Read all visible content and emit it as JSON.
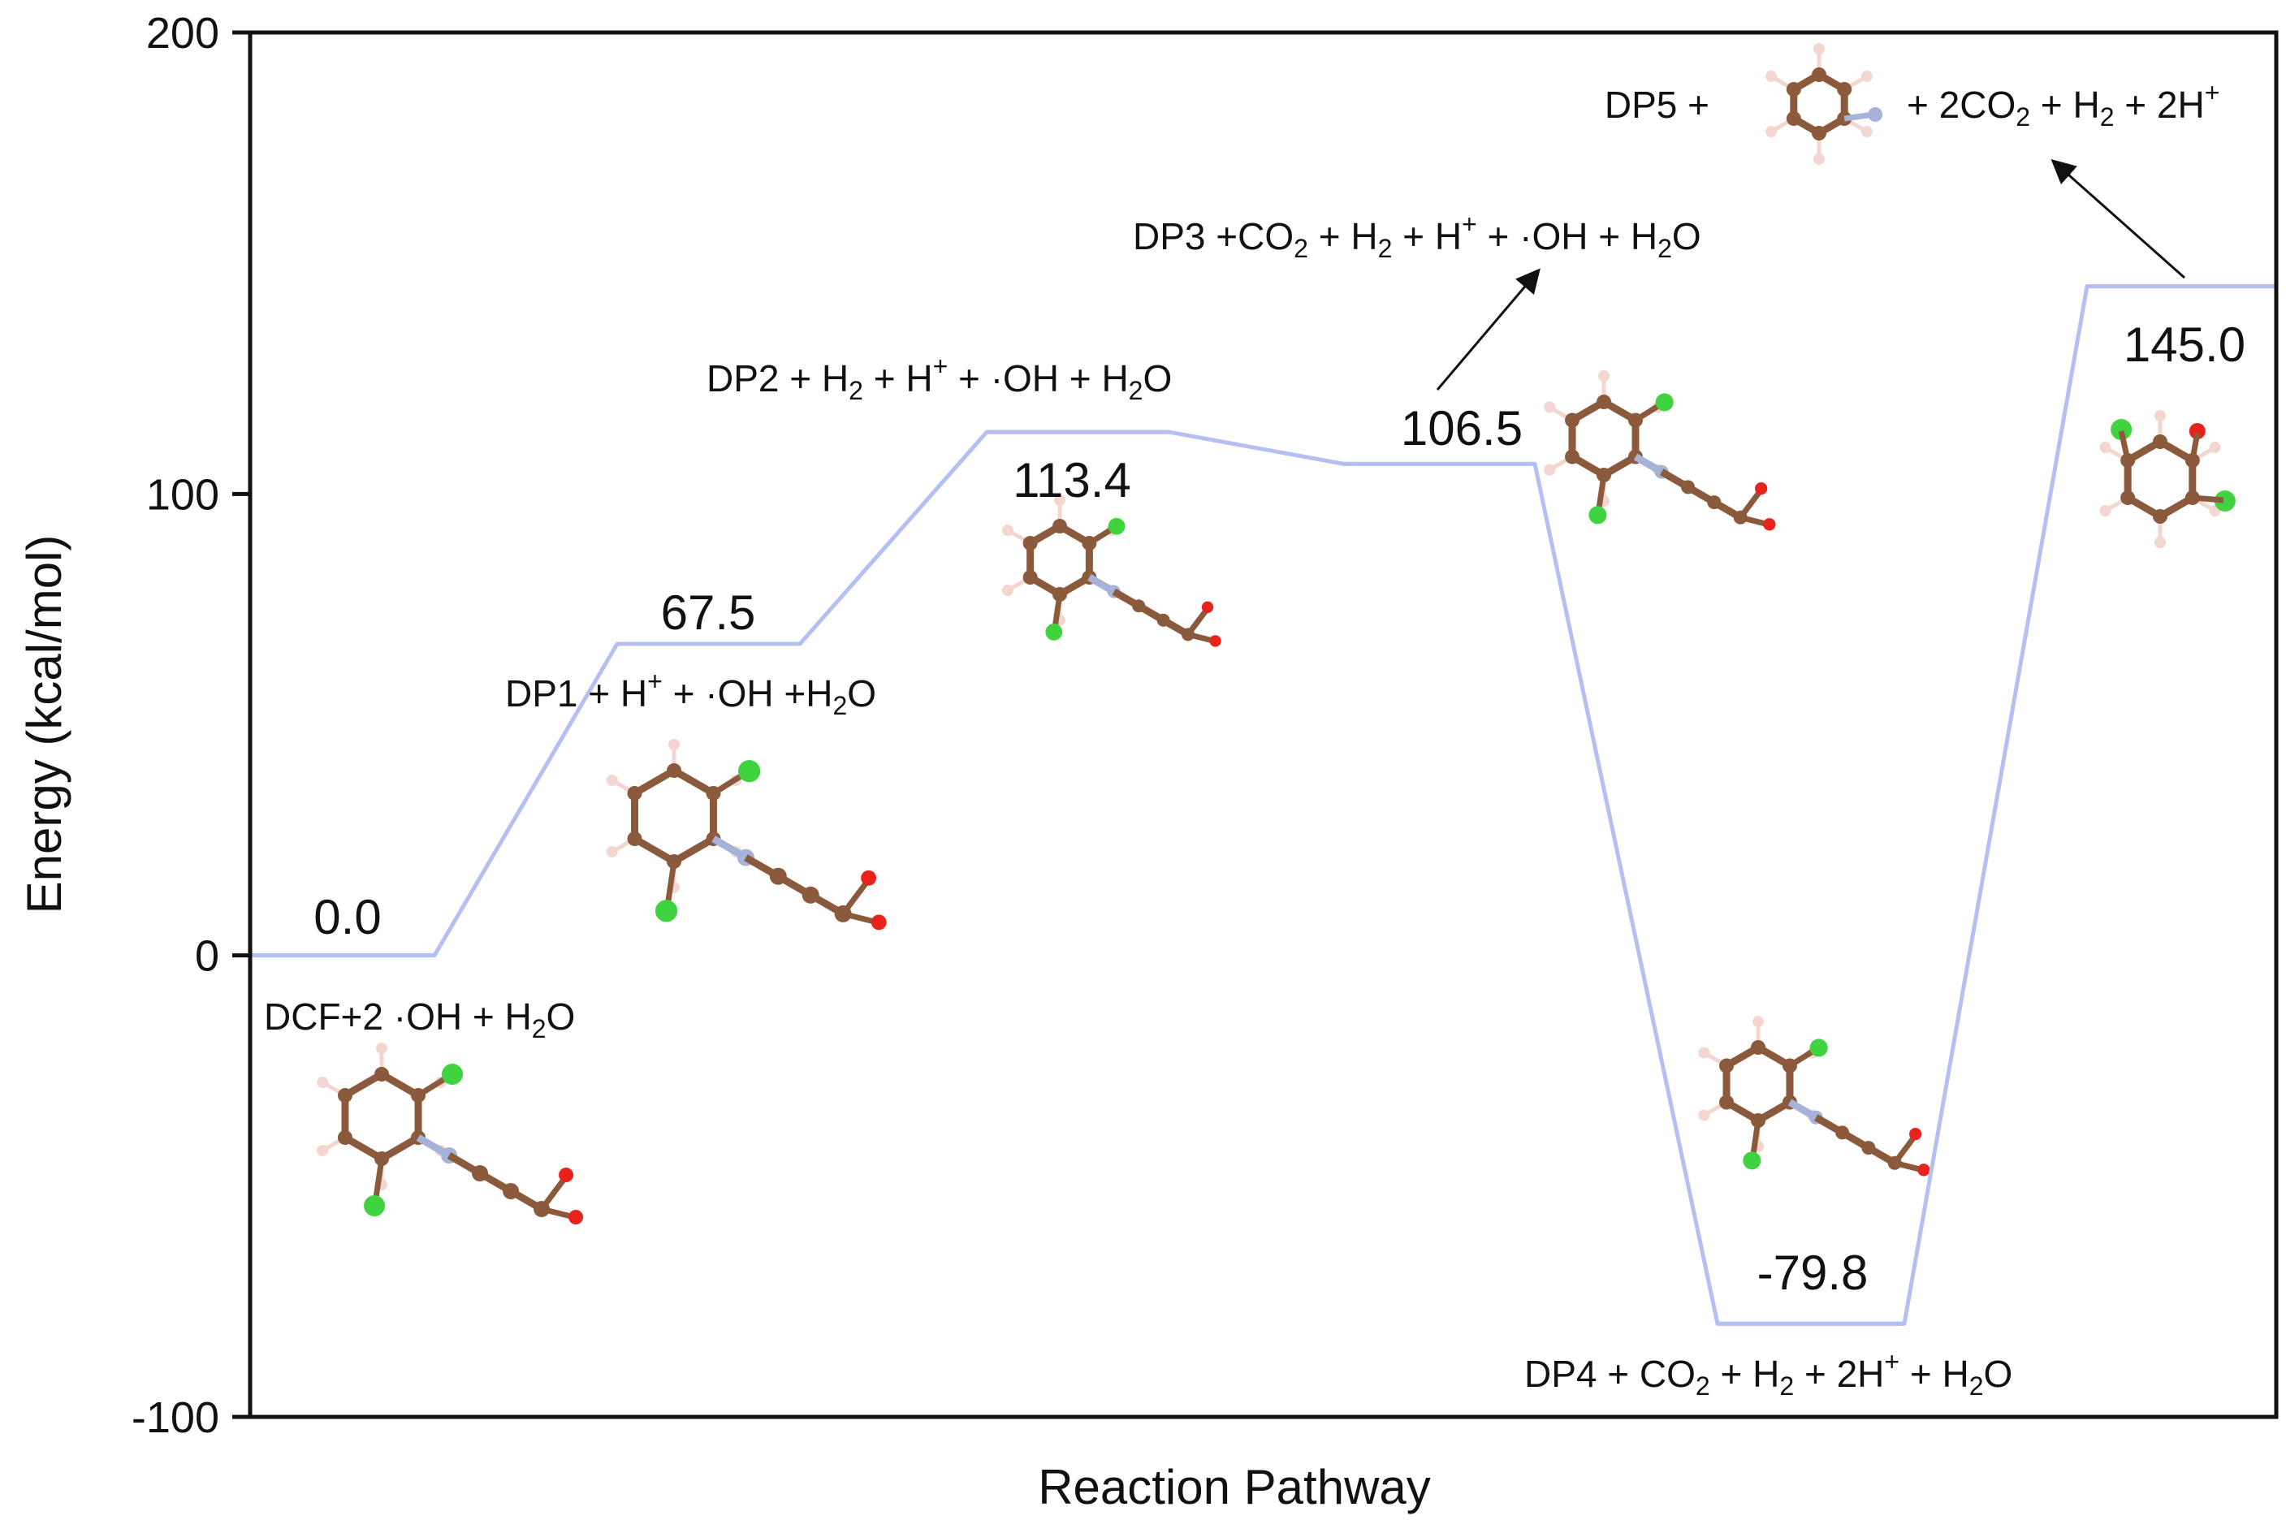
{
  "chart_data": {
    "type": "line",
    "xlabel": "Reaction Pathway",
    "ylabel": "Energy (kcal/mol)",
    "ylim": [
      -100,
      200
    ],
    "yticks": [
      "-100",
      "0",
      "100",
      "200"
    ],
    "grid": false,
    "line_color": "#b4c0f2",
    "series": [
      {
        "values": [
          0.0,
          67.5,
          113.4,
          106.5,
          -79.8,
          145.0
        ],
        "value_labels": [
          "0.0",
          "67.5",
          "113.4",
          "106.5",
          "-79.8",
          "145.0"
        ]
      }
    ],
    "species": [
      {
        "parts": [
          [
            "DCF+2 ·OH + H",
            ""
          ],
          [
            "2",
            "sub"
          ],
          [
            "O",
            ""
          ]
        ]
      },
      {
        "parts": [
          [
            "DP1 + H",
            ""
          ],
          [
            "+",
            "sup"
          ],
          [
            " + ·OH +H",
            ""
          ],
          [
            "2",
            "sub"
          ],
          [
            "O",
            ""
          ]
        ]
      },
      {
        "parts": [
          [
            "DP2 + H",
            ""
          ],
          [
            "2",
            "sub"
          ],
          [
            " + H",
            ""
          ],
          [
            "+",
            "sup"
          ],
          [
            " + ·OH + H",
            ""
          ],
          [
            "2",
            "sub"
          ],
          [
            "O",
            ""
          ]
        ]
      },
      {
        "parts": [
          [
            "DP3 +CO",
            ""
          ],
          [
            "2",
            "sub"
          ],
          [
            " + H",
            ""
          ],
          [
            "2",
            "sub"
          ],
          [
            " + H",
            ""
          ],
          [
            "+",
            "sup"
          ],
          [
            " + ·OH + H",
            ""
          ],
          [
            "2",
            "sub"
          ],
          [
            "O",
            ""
          ]
        ]
      },
      {
        "parts": [
          [
            "DP4 + CO",
            ""
          ],
          [
            "2",
            "sub"
          ],
          [
            " + H",
            ""
          ],
          [
            "2",
            "sub"
          ],
          [
            " + 2H",
            ""
          ],
          [
            "+",
            "sup"
          ],
          [
            " + H",
            ""
          ],
          [
            "2",
            "sub"
          ],
          [
            "O",
            ""
          ]
        ]
      },
      {
        "parts": [
          [
            "DP5 + ",
            ""
          ]
        ],
        "suffix_parts": [
          [
            "+ 2CO",
            ""
          ],
          [
            "2",
            "sub"
          ],
          [
            " + H",
            ""
          ],
          [
            "2",
            "sub"
          ],
          [
            " + 2H",
            ""
          ],
          [
            "+",
            "sup"
          ]
        ]
      }
    ]
  }
}
